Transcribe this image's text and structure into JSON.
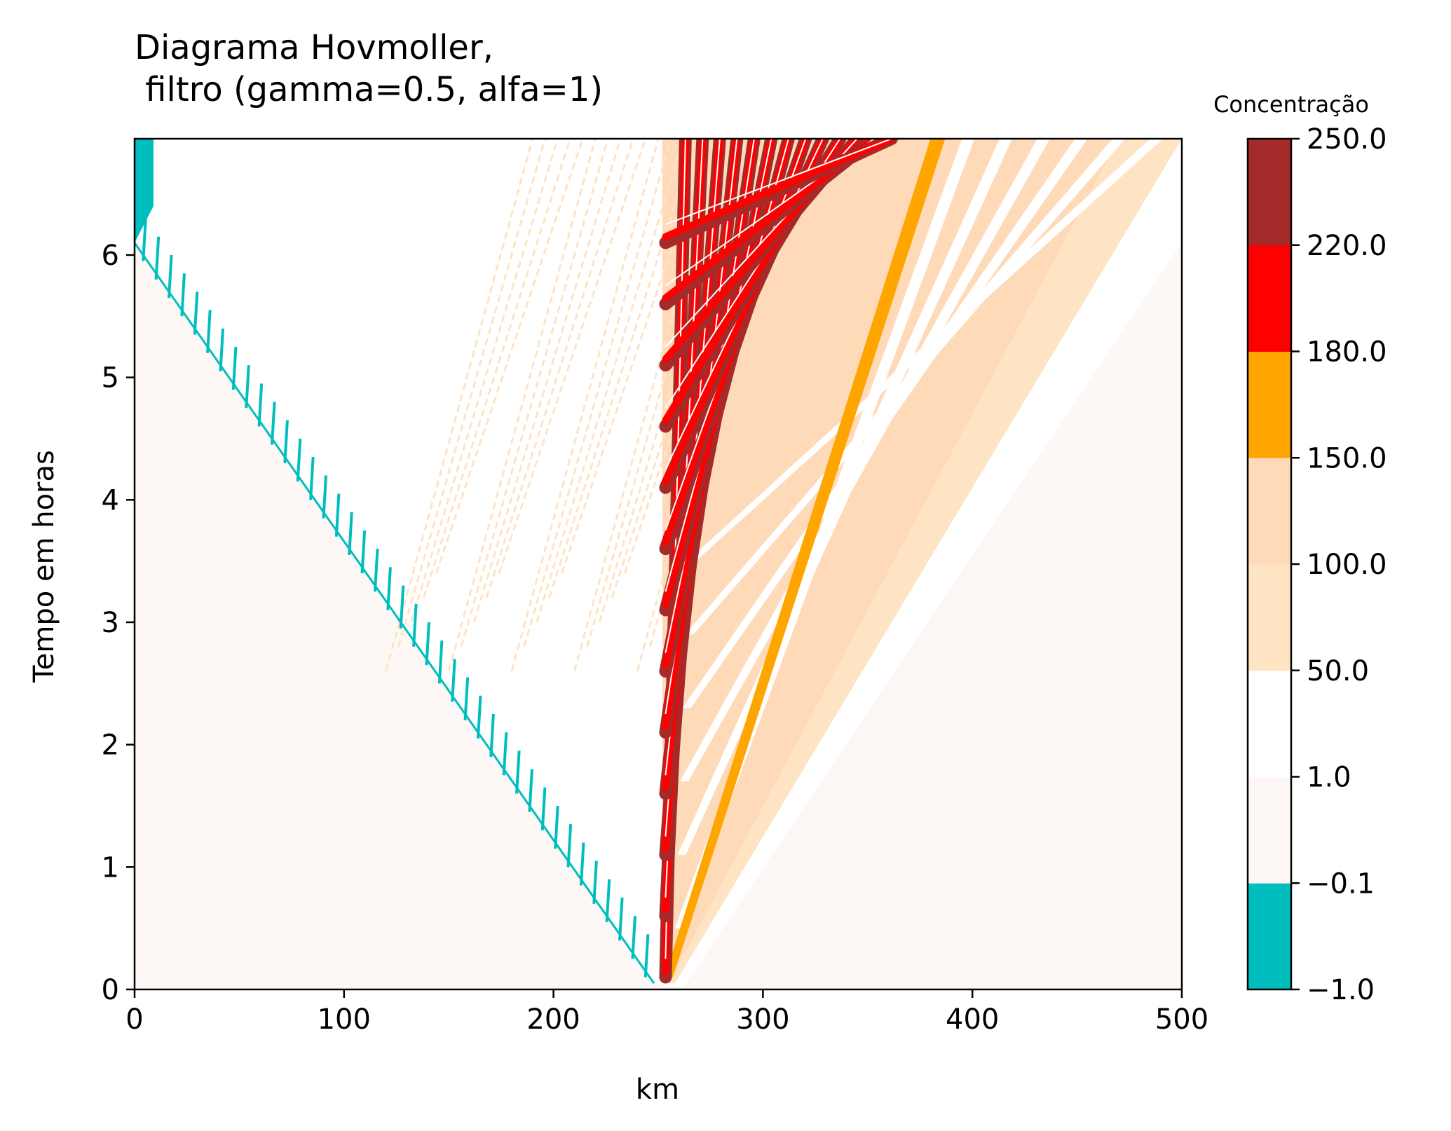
{
  "chart_data": {
    "type": "heatmap",
    "title_lines": [
      "Diagrama Hovmoller,",
      " filtro (gamma=0.5, alfa=1)"
    ],
    "xlabel": "km",
    "ylabel": "Tempo em horas",
    "xlim": [
      0,
      500
    ],
    "ylim": [
      0,
      6.95
    ],
    "xticks": [
      0,
      100,
      200,
      300,
      400,
      500
    ],
    "xtick_labels": [
      "0",
      "100",
      "200",
      "300",
      "400",
      "500"
    ],
    "yticks": [
      0,
      1,
      2,
      3,
      4,
      5,
      6
    ],
    "ytick_labels": [
      "0",
      "1",
      "2",
      "3",
      "4",
      "5",
      "6"
    ],
    "grid": false,
    "colorbar": {
      "label": "Concentração",
      "levels": [
        -1.0,
        -0.1,
        1.0,
        50.0,
        100.0,
        150.0,
        180.0,
        220.0,
        250.0
      ],
      "tick_labels": [
        "−1.0",
        "−0.1",
        "1.0",
        "50.0",
        "100.0",
        "150.0",
        "180.0",
        "220.0",
        "250.0"
      ],
      "colors": [
        "#00bebe",
        "#fdf8f6",
        "#ffffff",
        "#ffe4c4",
        "#ffdab9",
        "#ffa500",
        "#ff0000",
        "#a52a2a"
      ]
    },
    "features": {
      "source_x_km": 250,
      "front_speed_km_per_h": 36,
      "main_bands": {
        "count": 13,
        "x_start_km": 252,
        "x_end_km": 385,
        "t_start_h": 0.1,
        "color": "#a52a2a"
      },
      "negative_wake_edge": {
        "from": [
          248,
          0.05
        ],
        "to": [
          0,
          6.1
        ],
        "color": "#00bebe"
      },
      "left_ripples_color": "#ffe4c4"
    }
  }
}
